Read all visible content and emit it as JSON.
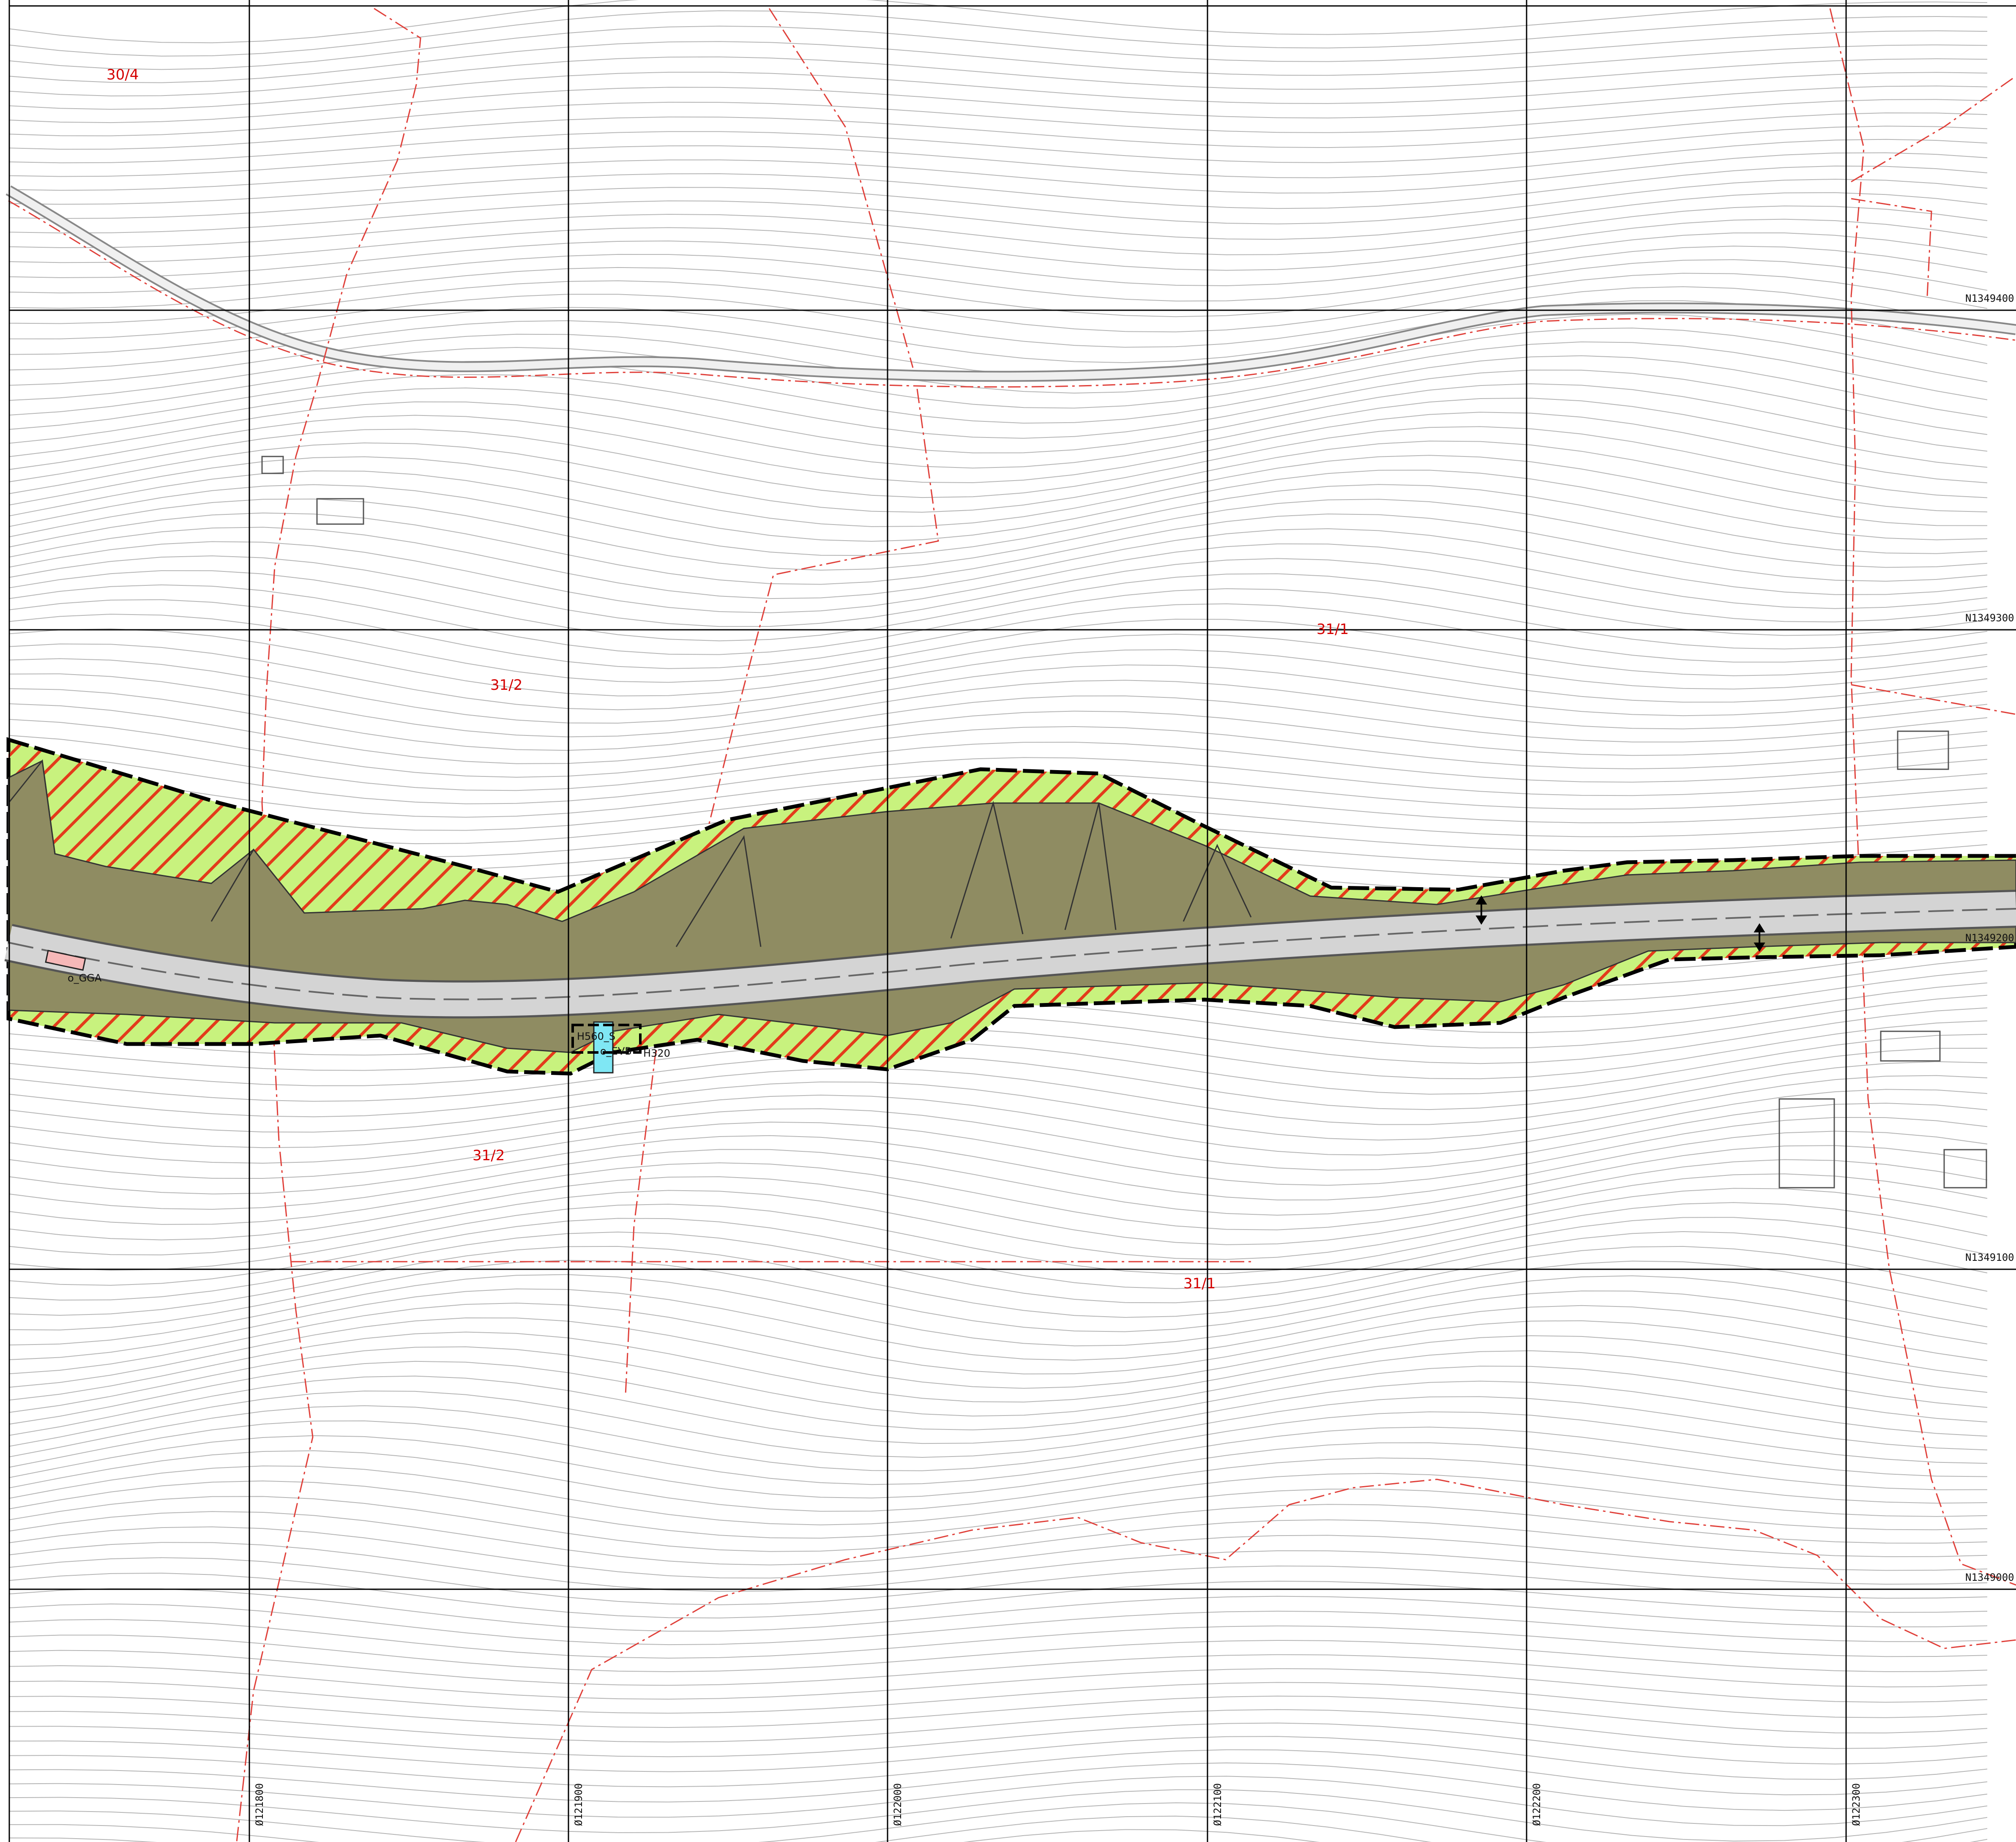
{
  "map": {
    "property_labels": [
      "30/4",
      "31/2",
      "31/1",
      "31/2",
      "31/1"
    ],
    "northing_labels": [
      "N1349400",
      "N1349300",
      "N1349200",
      "N1349100",
      "N1349000"
    ],
    "easting_labels": [
      "Ø121800",
      "Ø121900",
      "Ø122000",
      "Ø122100",
      "Ø122200",
      "Ø122300"
    ],
    "zone_labels": [
      "o_GGA",
      "H560_S",
      "o_EVB",
      "H320"
    ],
    "colors": {
      "grid": "#000000",
      "contour": "#b5b5b5",
      "property_line": "#e0403a",
      "hatch_fill": "#c8f27e",
      "hatch_stripe": "#e33b1b",
      "slope_fill": "#8f8c62",
      "road": "#cfcfcf",
      "boundary": "#000000",
      "water": "#7fe7f4",
      "parking": "#f6b8b8"
    }
  }
}
